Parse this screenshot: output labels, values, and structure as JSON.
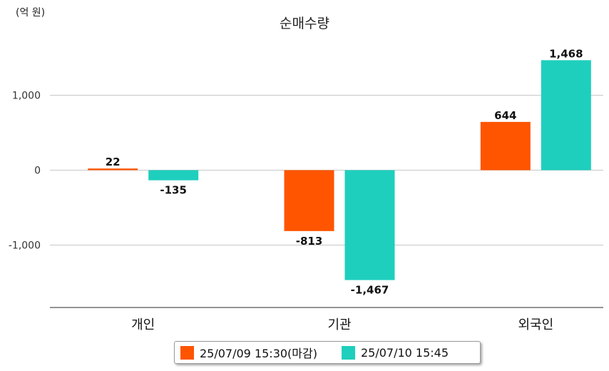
{
  "chart_data": {
    "type": "bar",
    "title": "순매수량",
    "unit_label": "(억 원)",
    "categories": [
      "개인",
      "기관",
      "외국인"
    ],
    "series": [
      {
        "name": "25/07/09 15:30(마감)",
        "color": "#ff5500",
        "values": [
          22,
          -813,
          644
        ],
        "labels": [
          "22",
          "-813",
          "644"
        ]
      },
      {
        "name": "25/07/10 15:45",
        "color": "#1ecfbd",
        "values": [
          -135,
          -1467,
          1468
        ],
        "labels": [
          "-135",
          "-1,467",
          "1,468"
        ]
      }
    ],
    "yticks": [
      1000,
      0,
      -1000
    ],
    "ytick_labels": [
      "1,000",
      "0",
      "-1,000"
    ],
    "ylim": [
      -1800,
      1800
    ],
    "grid": true,
    "legend": "bottom"
  }
}
